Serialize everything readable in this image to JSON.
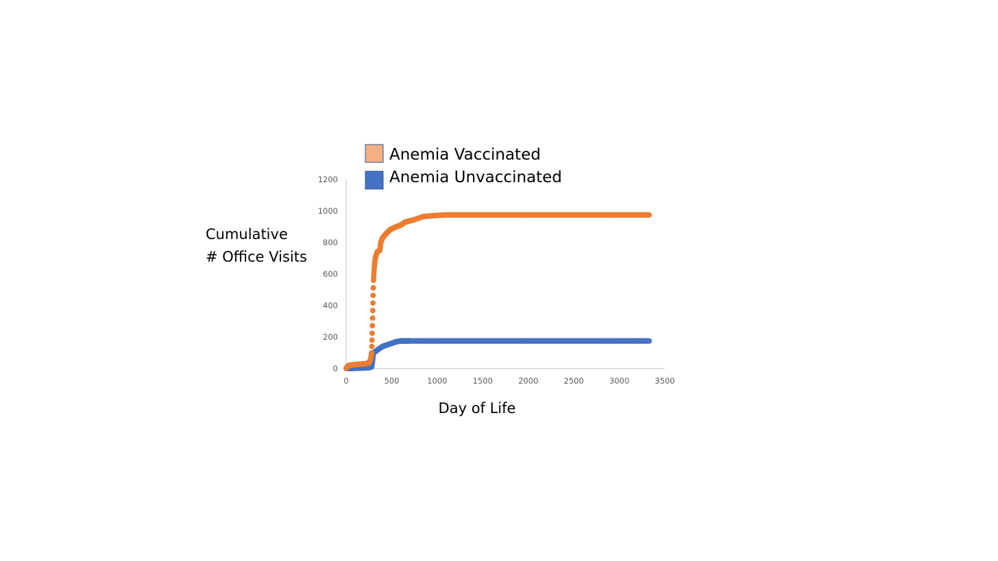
{
  "chart_data": {
    "type": "scatter",
    "title": "",
    "xlabel": "Day of Life",
    "ylabel_lines": [
      "Cumulative",
      "# Office Visits"
    ],
    "xlim": [
      0,
      3500
    ],
    "ylim": [
      0,
      1200
    ],
    "x_ticks": [
      "0",
      "500",
      "1000",
      "1500",
      "2000",
      "2500",
      "3000",
      "3500"
    ],
    "y_ticks": [
      "0",
      "200",
      "400",
      "600",
      "800",
      "1000",
      "1200"
    ],
    "grid": false,
    "legend_position": "top-left",
    "series": [
      {
        "name": "Anemia Vaccinated",
        "color": "#ED7D31",
        "legend_color": "#F4B183",
        "anchors": [
          [
            0,
            0
          ],
          [
            10,
            10
          ],
          [
            30,
            20
          ],
          [
            100,
            25
          ],
          [
            200,
            30
          ],
          [
            250,
            35
          ],
          [
            270,
            60
          ],
          [
            280,
            100
          ],
          [
            285,
            200
          ],
          [
            290,
            320
          ],
          [
            295,
            440
          ],
          [
            300,
            560
          ],
          [
            310,
            650
          ],
          [
            320,
            700
          ],
          [
            340,
            740
          ],
          [
            370,
            750
          ],
          [
            380,
            800
          ],
          [
            400,
            830
          ],
          [
            430,
            850
          ],
          [
            480,
            880
          ],
          [
            550,
            900
          ],
          [
            600,
            910
          ],
          [
            650,
            930
          ],
          [
            750,
            945
          ],
          [
            850,
            965
          ],
          [
            1000,
            972
          ],
          [
            1100,
            975
          ],
          [
            1500,
            975
          ],
          [
            2000,
            975
          ],
          [
            2500,
            975
          ],
          [
            3000,
            975
          ],
          [
            3330,
            975
          ]
        ]
      },
      {
        "name": "Anemia Unvaccinated",
        "color": "#4472C4",
        "legend_color": "#4472C4",
        "anchors": [
          [
            0,
            0
          ],
          [
            50,
            0
          ],
          [
            100,
            2
          ],
          [
            150,
            3
          ],
          [
            200,
            4
          ],
          [
            250,
            5
          ],
          [
            280,
            10
          ],
          [
            290,
            50
          ],
          [
            300,
            100
          ],
          [
            350,
            120
          ],
          [
            400,
            140
          ],
          [
            450,
            150
          ],
          [
            500,
            160
          ],
          [
            550,
            170
          ],
          [
            600,
            175
          ],
          [
            800,
            175
          ],
          [
            1000,
            175
          ],
          [
            1500,
            175
          ],
          [
            2000,
            175
          ],
          [
            2500,
            175
          ],
          [
            3000,
            175
          ],
          [
            3330,
            175
          ]
        ]
      }
    ]
  }
}
